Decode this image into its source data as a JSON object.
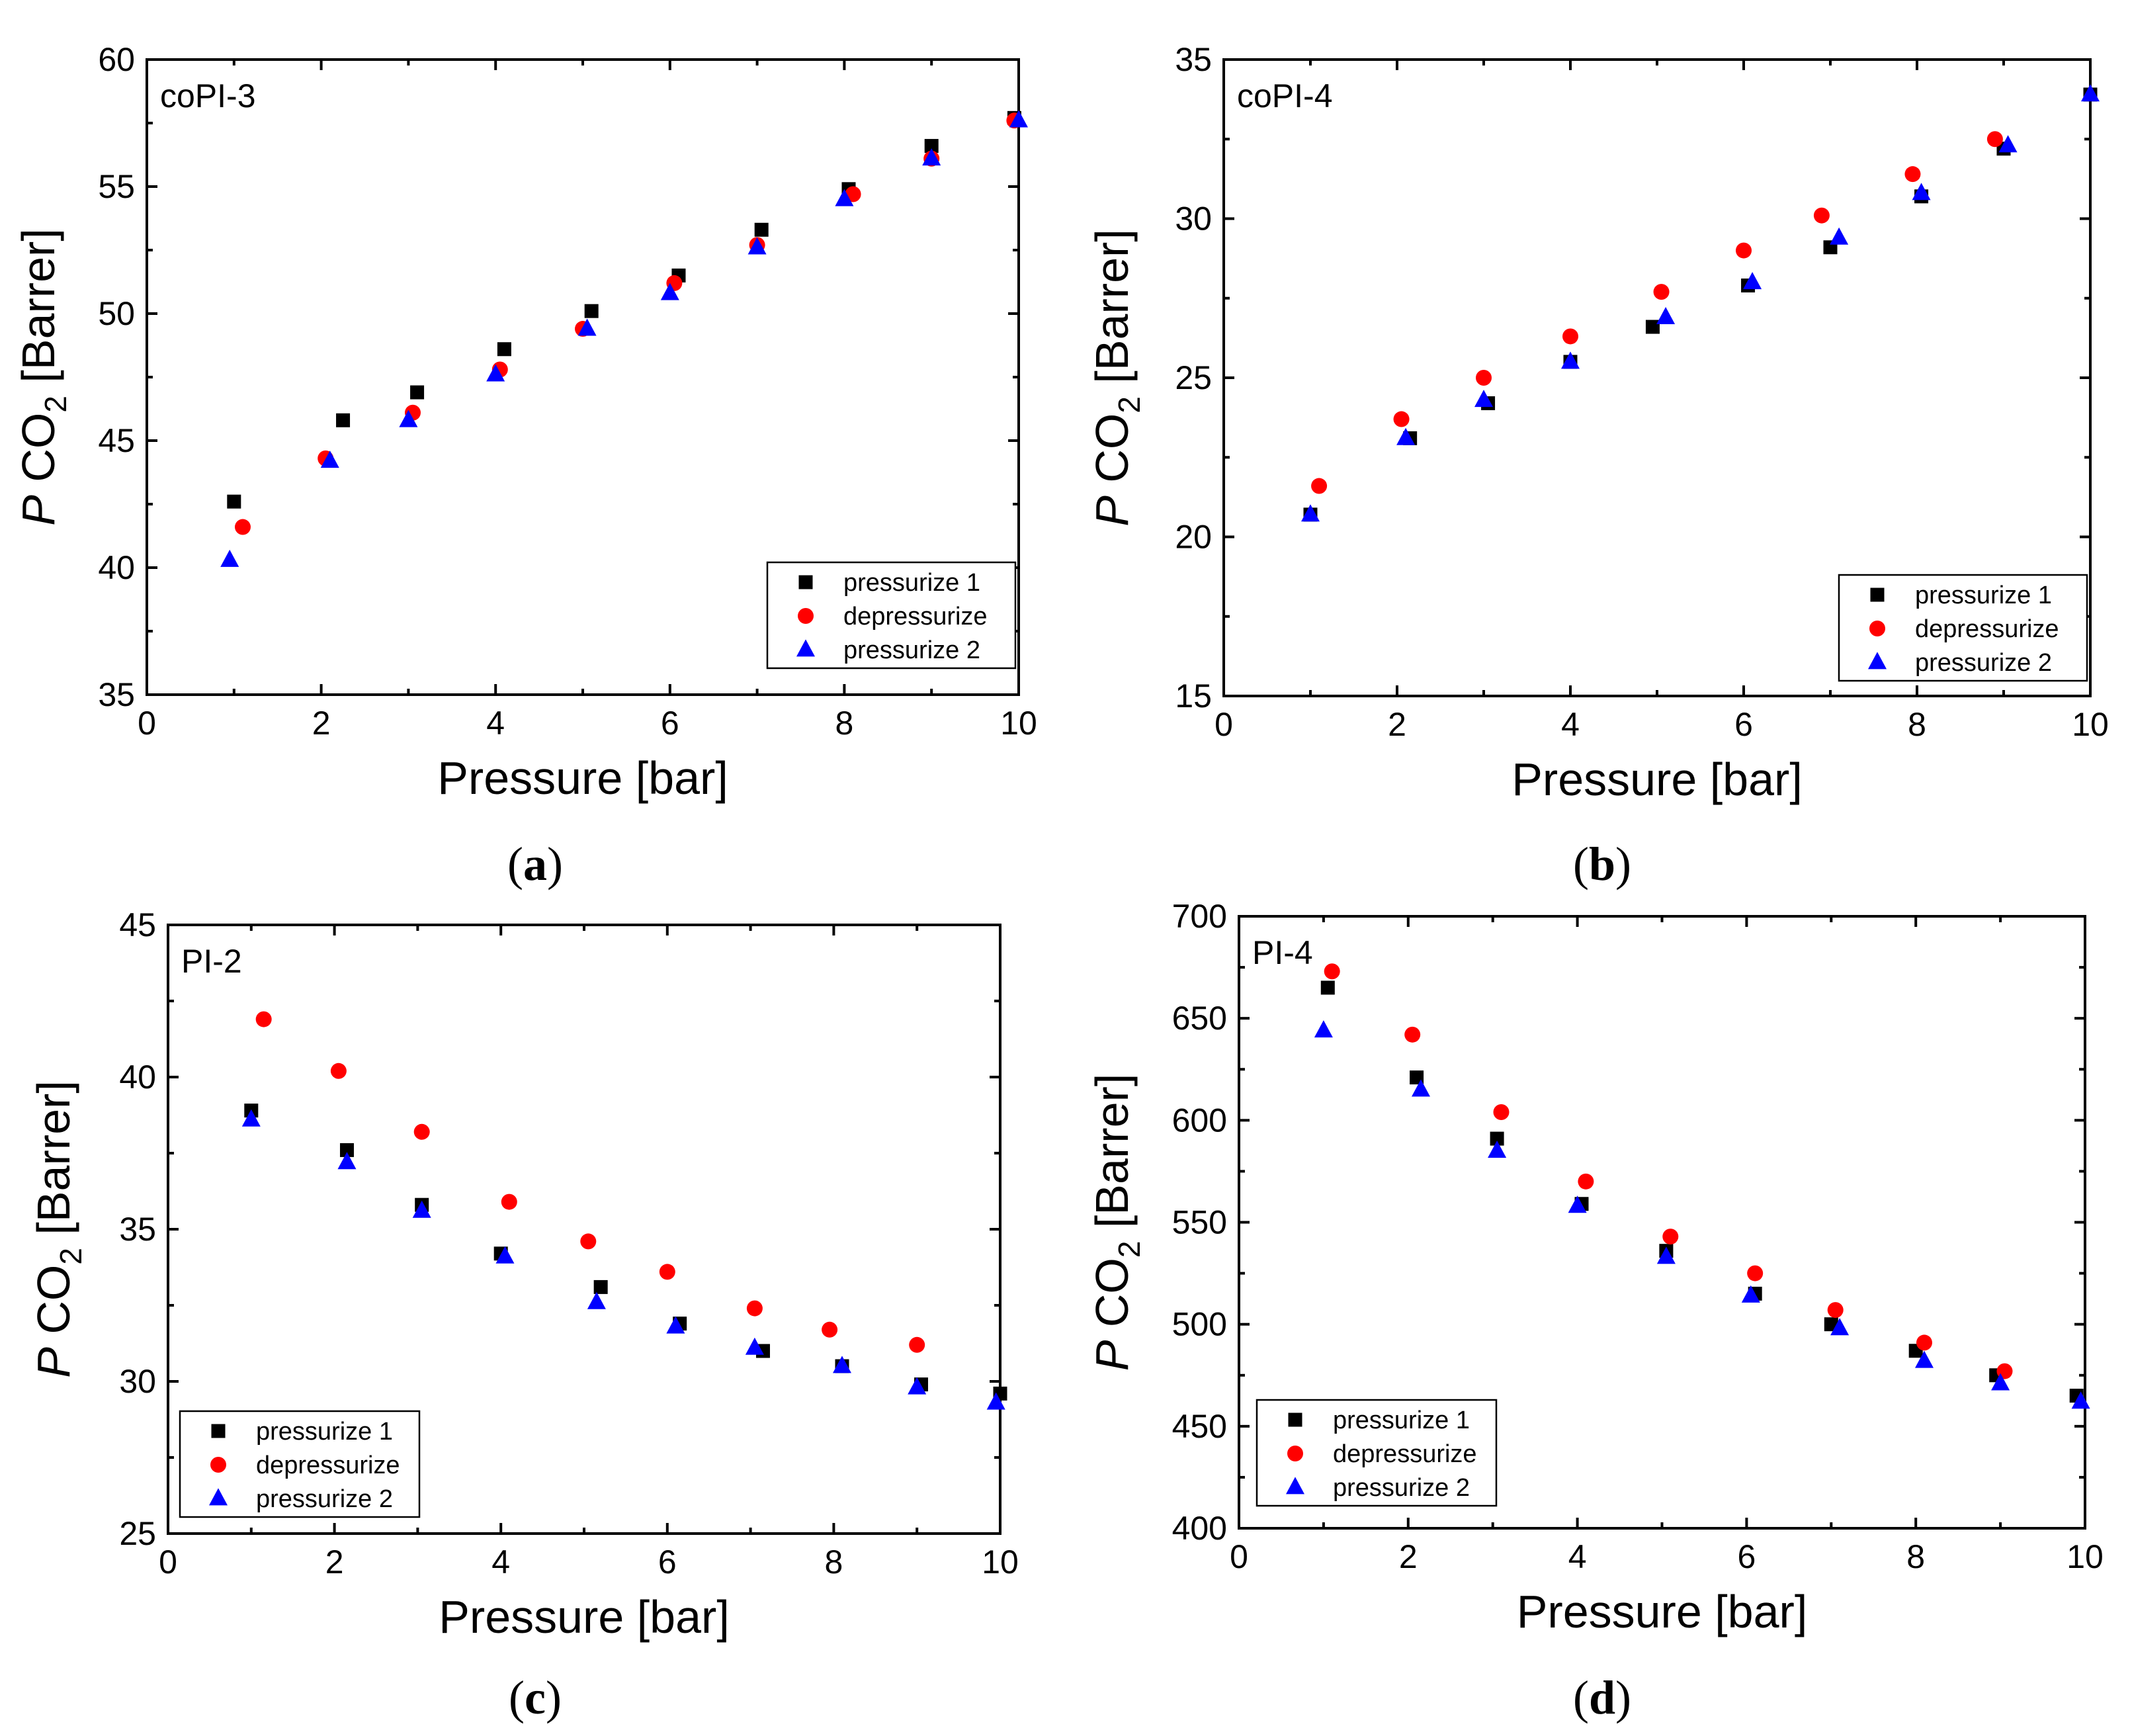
{
  "chart_data": [
    {
      "type": "scatter",
      "panel": "(a)",
      "caption_prefix": "(",
      "caption_letter": "a",
      "caption_suffix": ")",
      "label": "coPI-3",
      "xlabel": "Pressure [bar]",
      "ylabel_italic": "P",
      "ylabel_main": " CO",
      "ylabel_sub": "2",
      "ylabel_unit": " [Barrer]",
      "xlim": [
        0,
        10
      ],
      "xticks": [
        0,
        2,
        4,
        6,
        8,
        10
      ],
      "ylim": [
        35,
        60
      ],
      "yticks": [
        35,
        40,
        45,
        50,
        55,
        60
      ],
      "legend_position": "bottom-right",
      "series": [
        {
          "name": "pressurize 1",
          "marker": "square",
          "color": "#000000",
          "x": [
            1.0,
            2.25,
            3.1,
            4.1,
            5.1,
            6.1,
            7.05,
            8.05,
            9.0,
            9.95
          ],
          "y": [
            42.6,
            45.8,
            46.9,
            48.6,
            50.1,
            51.5,
            53.3,
            54.9,
            56.6,
            57.7
          ]
        },
        {
          "name": "depressurize",
          "marker": "circle",
          "color": "#ff0000",
          "x": [
            1.1,
            2.05,
            3.05,
            4.05,
            5.0,
            6.05,
            7.0,
            8.1,
            9.0,
            9.95
          ],
          "y": [
            41.6,
            44.3,
            46.1,
            47.8,
            49.4,
            51.2,
            52.7,
            54.7,
            56.1,
            57.6
          ]
        },
        {
          "name": "pressurize 2",
          "marker": "triangle",
          "color": "#0000ff",
          "x": [
            0.95,
            2.1,
            3.0,
            4.0,
            5.05,
            6.0,
            7.0,
            8.0,
            9.0,
            10.0
          ],
          "y": [
            40.3,
            44.2,
            45.8,
            47.6,
            49.4,
            50.8,
            52.6,
            54.5,
            56.1,
            57.6
          ]
        }
      ]
    },
    {
      "type": "scatter",
      "panel": "(b)",
      "caption_prefix": "(",
      "caption_letter": "b",
      "caption_suffix": ")",
      "label": "coPI-4",
      "xlabel": "Pressure [bar]",
      "ylabel_italic": "P",
      "ylabel_main": " CO",
      "ylabel_sub": "2",
      "ylabel_unit": " [Barrer]",
      "xlim": [
        0,
        10
      ],
      "xticks": [
        0,
        2,
        4,
        6,
        8,
        10
      ],
      "ylim": [
        15,
        35
      ],
      "yticks": [
        15,
        20,
        25,
        30,
        35
      ],
      "legend_position": "bottom-right",
      "series": [
        {
          "name": "pressurize 1",
          "marker": "square",
          "color": "#000000",
          "x": [
            1.0,
            2.15,
            3.05,
            4.0,
            4.95,
            6.05,
            7.0,
            8.05,
            9.0,
            10.0
          ],
          "y": [
            20.7,
            23.1,
            24.2,
            25.5,
            26.6,
            27.9,
            29.1,
            30.7,
            32.2,
            33.9
          ]
        },
        {
          "name": "depressurize",
          "marker": "circle",
          "color": "#ff0000",
          "x": [
            1.1,
            2.05,
            3.0,
            4.0,
            5.05,
            6.0,
            6.9,
            7.95,
            8.9
          ],
          "y": [
            21.6,
            23.7,
            25.0,
            26.3,
            27.7,
            29.0,
            30.1,
            31.4,
            32.5
          ]
        },
        {
          "name": "pressurize 2",
          "marker": "triangle",
          "color": "#0000ff",
          "x": [
            1.0,
            2.1,
            3.0,
            4.0,
            5.1,
            6.1,
            7.1,
            8.05,
            9.05,
            10.0
          ],
          "y": [
            20.7,
            23.1,
            24.3,
            25.5,
            26.9,
            28.0,
            29.4,
            30.8,
            32.3,
            33.9
          ]
        }
      ]
    },
    {
      "type": "scatter",
      "panel": "(c)",
      "caption_prefix": "(",
      "caption_letter": "c",
      "caption_suffix": ")",
      "label": "PI-2",
      "xlabel": "Pressure [bar]",
      "ylabel_italic": "P",
      "ylabel_main": " CO",
      "ylabel_sub": "2",
      "ylabel_unit": " [Barrer]",
      "xlim": [
        0,
        10
      ],
      "xticks": [
        0,
        2,
        4,
        6,
        8,
        10
      ],
      "ylim": [
        25,
        45
      ],
      "yticks": [
        25,
        30,
        35,
        40,
        45
      ],
      "legend_position": "bottom-left",
      "series": [
        {
          "name": "pressurize 1",
          "marker": "square",
          "color": "#000000",
          "x": [
            1.0,
            2.15,
            3.05,
            4.0,
            5.2,
            6.15,
            7.15,
            8.1,
            9.05,
            10.0
          ],
          "y": [
            38.9,
            37.6,
            35.8,
            34.2,
            33.1,
            31.9,
            31.0,
            30.5,
            29.9,
            29.6
          ]
        },
        {
          "name": "depressurize",
          "marker": "circle",
          "color": "#ff0000",
          "x": [
            1.15,
            2.05,
            3.05,
            4.1,
            5.05,
            6.0,
            7.05,
            7.95,
            9.0
          ],
          "y": [
            41.9,
            40.2,
            38.2,
            35.9,
            34.6,
            33.6,
            32.4,
            31.7,
            31.2
          ]
        },
        {
          "name": "pressurize 2",
          "marker": "triangle",
          "color": "#0000ff",
          "x": [
            1.0,
            2.15,
            3.05,
            4.05,
            5.15,
            6.1,
            7.05,
            8.1,
            9.0,
            9.95
          ],
          "y": [
            38.6,
            37.2,
            35.6,
            34.1,
            32.6,
            31.8,
            31.1,
            30.5,
            29.8,
            29.3
          ]
        }
      ]
    },
    {
      "type": "scatter",
      "panel": "(d)",
      "caption_prefix": "(",
      "caption_letter": "d",
      "caption_suffix": ")",
      "label": "PI-4",
      "xlabel": "Pressure [bar]",
      "ylabel_italic": "P",
      "ylabel_main": " CO",
      "ylabel_sub": "2",
      "ylabel_unit": " [Barrer]",
      "xlim": [
        0,
        10
      ],
      "xticks": [
        0,
        2,
        4,
        6,
        8,
        10
      ],
      "ylim": [
        400,
        700
      ],
      "yticks": [
        400,
        450,
        500,
        550,
        600,
        650,
        700
      ],
      "legend_position": "bottom-left",
      "series": [
        {
          "name": "pressurize 1",
          "marker": "square",
          "color": "#000000",
          "x": [
            1.05,
            2.1,
            3.05,
            4.05,
            5.05,
            6.1,
            7.0,
            8.0,
            8.95,
            9.9
          ],
          "y": [
            665,
            621,
            591,
            559,
            536,
            515,
            500,
            487,
            475,
            465
          ]
        },
        {
          "name": "depressurize",
          "marker": "circle",
          "color": "#ff0000",
          "x": [
            1.1,
            2.05,
            3.1,
            4.1,
            5.1,
            6.1,
            7.05,
            8.1,
            9.05
          ],
          "y": [
            673,
            642,
            604,
            570,
            543,
            525,
            507,
            491,
            477
          ]
        },
        {
          "name": "pressurize 2",
          "marker": "triangle",
          "color": "#0000ff",
          "x": [
            1.0,
            2.15,
            3.05,
            4.0,
            5.05,
            6.05,
            7.1,
            8.1,
            9.0,
            9.95
          ],
          "y": [
            644,
            615,
            585,
            558,
            533,
            514,
            498,
            482,
            471,
            462
          ]
        }
      ]
    }
  ]
}
